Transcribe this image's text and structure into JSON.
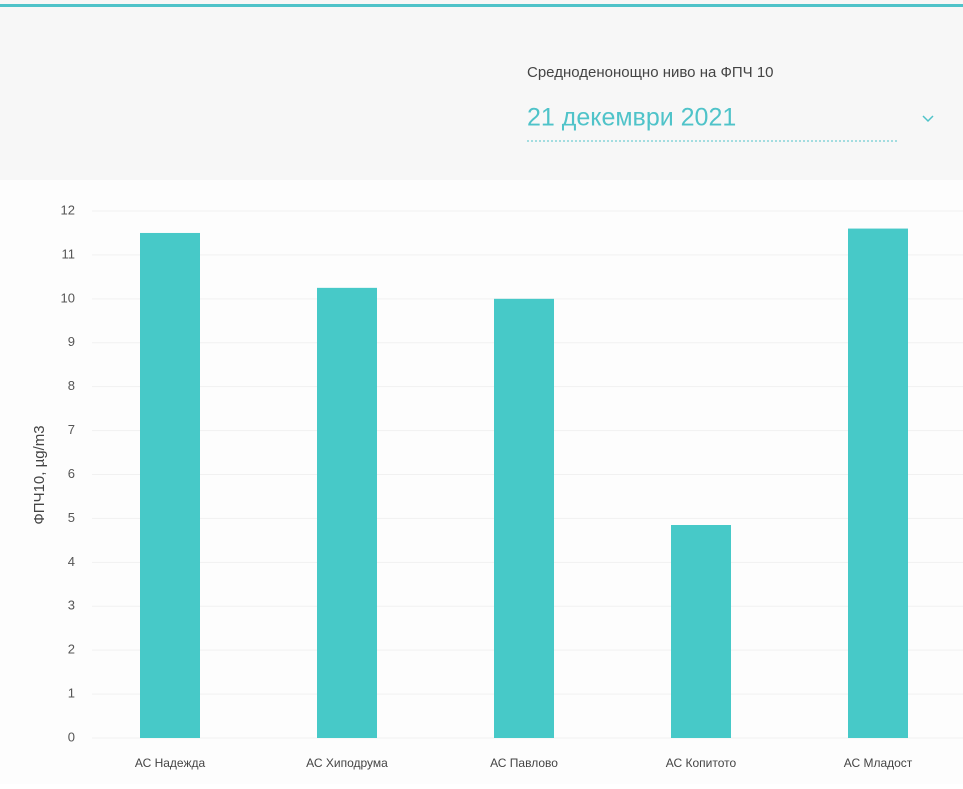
{
  "filter": {
    "label": "Средноденонощно ниво на ФПЧ 10",
    "value": "21 декември 2021"
  },
  "chart_data": {
    "type": "bar",
    "y_label": "ФПЧ10, µg/m3",
    "categories": [
      "АС Надежда",
      "АС Хиподрума",
      "АС Павлово",
      "АС Копитото",
      "АС Младост"
    ],
    "values": [
      11.5,
      10.25,
      10,
      4.85,
      11.6
    ],
    "color": "#47c9c8",
    "ylim": [
      0,
      12
    ],
    "yticks": [
      0,
      1,
      2,
      3,
      4,
      5,
      6,
      7,
      8,
      9,
      10,
      11,
      12
    ],
    "grid": true
  }
}
